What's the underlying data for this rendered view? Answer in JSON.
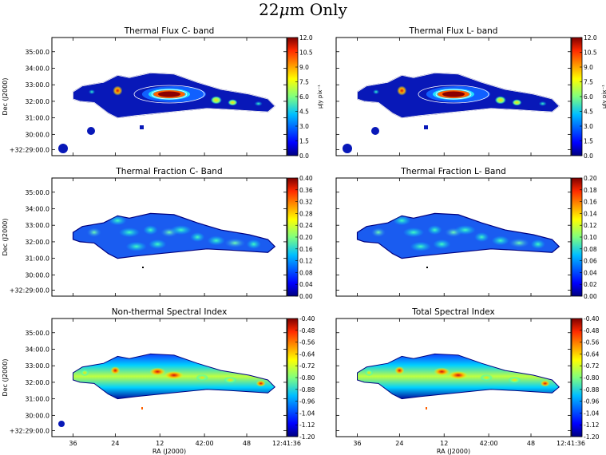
{
  "figure": {
    "suptitle_main": "22",
    "suptitle_mu": "μ",
    "suptitle_rest": "m Only"
  },
  "chart_data": [
    {
      "type": "heatmap",
      "title": "Thermal Flux C- band",
      "ylabel": "Dec (J2000)",
      "xlabel": "",
      "yticks": [
        "35:00.0",
        "34:00.0",
        "33:00.0",
        "32:00.0",
        "31:00.0",
        "30:00.0",
        "+32:29:00.0"
      ],
      "xticks": [],
      "colorbar": {
        "label": "μJy pix⁻¹",
        "ticks": [
          "12.0",
          "10.5",
          "9.0",
          "7.5",
          "6.0",
          "4.5",
          "3.0",
          "1.5",
          "0.0"
        ],
        "range": [
          0.0,
          12.0
        ]
      },
      "contours": true,
      "colormap": "jet"
    },
    {
      "type": "heatmap",
      "title": "Thermal Flux L- band",
      "ylabel": "",
      "xlabel": "",
      "yticks": [],
      "xticks": [],
      "colorbar": {
        "label": "μJy pix⁻¹",
        "ticks": [
          "12.0",
          "10.5",
          "9.0",
          "7.5",
          "6.0",
          "4.5",
          "3.0",
          "1.5",
          "0.0"
        ],
        "range": [
          0.0,
          12.0
        ]
      },
      "contours": true,
      "colormap": "jet"
    },
    {
      "type": "heatmap",
      "title": "Thermal Fraction C- Band",
      "ylabel": "Dec (J2000)",
      "xlabel": "",
      "yticks": [
        "35:00.0",
        "34:00.0",
        "33:00.0",
        "32:00.0",
        "31:00.0",
        "30:00.0",
        "+32:29:00.0"
      ],
      "xticks": [],
      "colorbar": {
        "label": "",
        "ticks": [
          "0.40",
          "0.36",
          "0.32",
          "0.28",
          "0.24",
          "0.20",
          "0.16",
          "0.12",
          "0.08",
          "0.04",
          "0.00"
        ],
        "range": [
          0.0,
          0.4
        ]
      },
      "contours": false,
      "colormap": "jet"
    },
    {
      "type": "heatmap",
      "title": "Thermal Fraction L- Band",
      "ylabel": "",
      "xlabel": "",
      "yticks": [],
      "xticks": [],
      "colorbar": {
        "label": "",
        "ticks": [
          "0.20",
          "0.18",
          "0.16",
          "0.14",
          "0.12",
          "0.10",
          "0.08",
          "0.06",
          "0.04",
          "0.02",
          "0.00"
        ],
        "range": [
          0.0,
          0.2
        ]
      },
      "contours": false,
      "colormap": "jet"
    },
    {
      "type": "heatmap",
      "title": "Non-thermal Spectral Index",
      "ylabel": "Dec (J2000)",
      "xlabel": "RA (J2000)",
      "yticks": [
        "35:00.0",
        "34:00.0",
        "33:00.0",
        "32:00.0",
        "31:00.0",
        "30:00.0",
        "+32:29:00.0"
      ],
      "xticks": [
        "36",
        "24",
        "12",
        "42:00",
        "48",
        "12:41:36"
      ],
      "colorbar": {
        "label": "",
        "ticks": [
          "-0.40",
          "-0.48",
          "-0.56",
          "-0.64",
          "-0.72",
          "-0.80",
          "-0.88",
          "-0.96",
          "-1.04",
          "-1.12",
          "-1.20"
        ],
        "range": [
          -1.2,
          -0.4
        ]
      },
      "contours": false,
      "colormap": "jet"
    },
    {
      "type": "heatmap",
      "title": "Total Spectral Index",
      "ylabel": "",
      "xlabel": "RA (J2000)",
      "yticks": [],
      "xticks": [
        "36",
        "24",
        "12",
        "42:00",
        "48",
        "12:41:36"
      ],
      "colorbar": {
        "label": "",
        "ticks": [
          "-0.40",
          "-0.48",
          "-0.56",
          "-0.64",
          "-0.72",
          "-0.80",
          "-0.88",
          "-0.96",
          "-1.04",
          "-1.12",
          "-1.20"
        ],
        "range": [
          -1.2,
          -0.4
        ]
      },
      "contours": false,
      "colormap": "jet"
    }
  ]
}
